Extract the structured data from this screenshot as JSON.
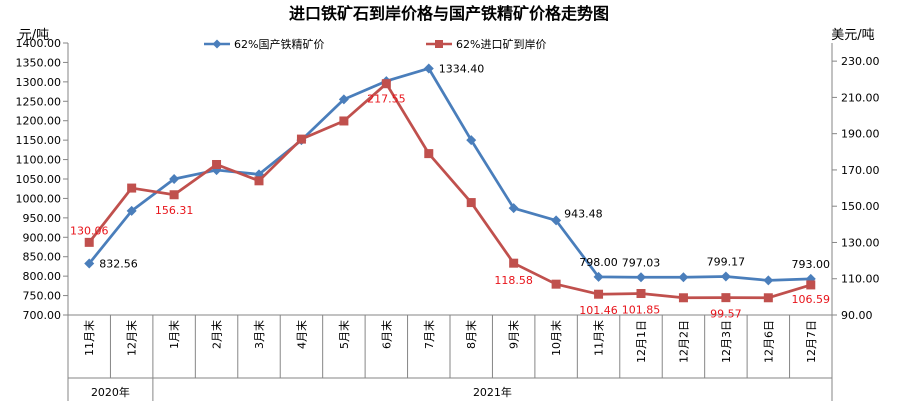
{
  "chart_data": {
    "type": "line",
    "title": "进口铁矿石到岸价格与国产铁精矿价格走势图",
    "y_left_unit": "元/吨",
    "y_right_unit": "美元/吨",
    "categories": [
      "11月末",
      "12月末",
      "1月末",
      "2月末",
      "3月末",
      "4月末",
      "5月末",
      "6月末",
      "7月末",
      "8月末",
      "9月末",
      "10月末",
      "11月末",
      "12月1日",
      "12月2日",
      "12月3日",
      "12月6日",
      "12月7日"
    ],
    "year_groups": [
      {
        "label": "2020年",
        "start": 0,
        "end": 1
      },
      {
        "label": "2021年",
        "start": 2,
        "end": 17
      }
    ],
    "y_left": {
      "min": 700,
      "max": 1400,
      "step": 50,
      "decimals": 2
    },
    "y_right": {
      "min": 90,
      "max": 240,
      "step": 20,
      "ticks": [
        90,
        110,
        130,
        150,
        170,
        190,
        210,
        230
      ],
      "decimals": 2
    },
    "grid": false,
    "legend_position": "top",
    "series": [
      {
        "name": "62%国产铁精矿价",
        "axis": "left",
        "color": "#4a7ebb",
        "marker": "diamond",
        "values": [
          832.56,
          968,
          1050,
          1073,
          1062,
          1150,
          1255,
          1302,
          1334.4,
          1150,
          975,
          943.48,
          798.0,
          797.03,
          797,
          799.17,
          789,
          793.0
        ],
        "labels": [
          {
            "index": 0,
            "text": "832.56"
          },
          {
            "index": 8,
            "text": "1334.40"
          },
          {
            "index": 11,
            "text": "943.48"
          },
          {
            "index": 12,
            "text": "798.00"
          },
          {
            "index": 13,
            "text": "797.03"
          },
          {
            "index": 15,
            "text": "799.17"
          },
          {
            "index": 17,
            "text": "793.00"
          }
        ]
      },
      {
        "name": "62%进口矿到岸价",
        "axis": "right",
        "color": "#c0504d",
        "marker": "square",
        "values": [
          130.06,
          160,
          156.31,
          173,
          164,
          187,
          197,
          217.55,
          179,
          152,
          118.58,
          107,
          101.46,
          101.85,
          99.5,
          99.57,
          99.5,
          106.59
        ],
        "labels": [
          {
            "index": 0,
            "text": "130.06"
          },
          {
            "index": 2,
            "text": "156.31"
          },
          {
            "index": 7,
            "text": "217.55"
          },
          {
            "index": 10,
            "text": "118.58"
          },
          {
            "index": 12,
            "text": "101.46"
          },
          {
            "index": 13,
            "text": "101.85"
          },
          {
            "index": 15,
            "text": "99.57"
          },
          {
            "index": 17,
            "text": "106.59"
          }
        ]
      }
    ]
  }
}
